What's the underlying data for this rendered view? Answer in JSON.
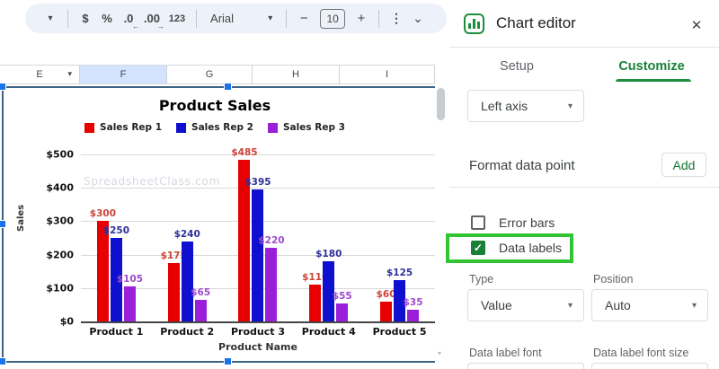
{
  "icons": {
    "caret_down": "▾",
    "kebab": "⋮",
    "collapse": "⌄",
    "close": "✕",
    "check": "✓",
    "arrow_left": "←",
    "arrow_right": "→",
    "scroll_down": "▾"
  },
  "toolbar": {
    "currency": "$",
    "percent": "%",
    "decrease_decimal": ".0",
    "increase_decimal": ".00",
    "number_format": "123",
    "font_name": "Arial",
    "font_size": "10",
    "minus": "−",
    "plus": "+"
  },
  "sheet": {
    "columns": [
      "E",
      "F",
      "G",
      "H",
      "I"
    ],
    "selected_column": "F",
    "dropdown_column": "E"
  },
  "chart_data": {
    "type": "bar",
    "title": "Product Sales",
    "categories": [
      "Product 1",
      "Product 2",
      "Product 3",
      "Product 4",
      "Product 5"
    ],
    "series": [
      {
        "name": "Sales Rep 1",
        "color": "#e60000",
        "label_color": "#cc4437",
        "values": [
          300,
          175,
          485,
          110,
          60
        ]
      },
      {
        "name": "Sales Rep 2",
        "color": "#0f0fd0",
        "label_color": "#30309c",
        "values": [
          250,
          240,
          395,
          180,
          125
        ]
      },
      {
        "name": "Sales Rep 3",
        "color": "#9b1fd9",
        "label_color": "#9d4ccc",
        "values": [
          105,
          65,
          220,
          55,
          35
        ]
      }
    ],
    "xlabel": "Product Name",
    "ylabel": "Sales",
    "ylim": [
      0,
      500
    ],
    "ytick_labels": [
      "$0",
      "$100",
      "$200",
      "$300",
      "$400",
      "$500"
    ],
    "value_prefix": "$",
    "grid": true,
    "legend_position": "top",
    "data_labels_shown": true,
    "watermark": "SpreadsheetClass.com"
  },
  "panel": {
    "title": "Chart editor",
    "tabs": [
      {
        "label": "Setup",
        "active": false
      },
      {
        "label": "Customize",
        "active": true
      }
    ],
    "axis_select_value": "Left axis",
    "format_data_point_label": "Format data point",
    "add_button_label": "Add",
    "error_bars_label": "Error bars",
    "error_bars_checked": false,
    "data_labels_label": "Data labels",
    "data_labels_checked": true,
    "type_label": "Type",
    "type_value": "Value",
    "position_label": "Position",
    "position_value": "Auto",
    "data_label_font_label": "Data label font",
    "data_label_font_size_label": "Data label font size",
    "accent_green": "#188038",
    "highlight_green": "#33c433"
  }
}
